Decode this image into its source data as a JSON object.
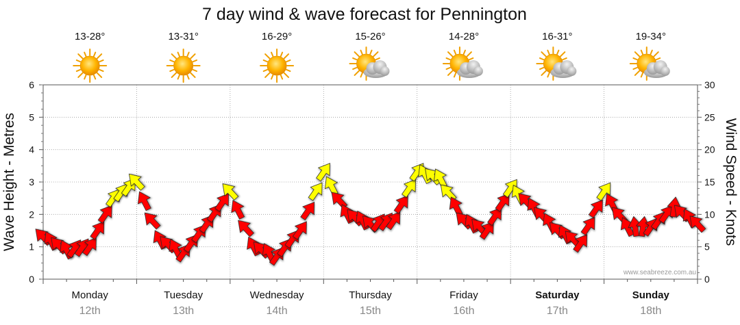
{
  "chart_data": {
    "type": "line",
    "title": "7 day wind & wave forecast for Pennington",
    "ylabel_left": "Wave Height - Metres",
    "ylabel_right": "Wind Speed - Knots",
    "ylim_left": [
      0,
      6
    ],
    "ylim_right": [
      0,
      30
    ],
    "left_ticks": [
      "0",
      "1",
      "2",
      "3",
      "4",
      "5",
      "6"
    ],
    "right_ticks": [
      "0",
      "5",
      "10",
      "15",
      "20",
      "25",
      "30"
    ],
    "days": [
      {
        "name": "Monday",
        "date": "12th",
        "temp": "13-28°",
        "weather": "sunny",
        "bold": false
      },
      {
        "name": "Tuesday",
        "date": "13th",
        "temp": "13-31°",
        "weather": "sunny",
        "bold": false
      },
      {
        "name": "Wednesday",
        "date": "14th",
        "temp": "16-29°",
        "weather": "sunny",
        "bold": false
      },
      {
        "name": "Thursday",
        "date": "15th",
        "temp": "15-26°",
        "weather": "partly-cloudy",
        "bold": false
      },
      {
        "name": "Friday",
        "date": "16th",
        "temp": "14-28°",
        "weather": "partly-cloudy",
        "bold": false
      },
      {
        "name": "Saturday",
        "date": "17th",
        "temp": "16-31°",
        "weather": "partly-cloudy",
        "bold": true
      },
      {
        "name": "Sunday",
        "date": "18th",
        "temp": "19-34°",
        "weather": "partly-cloudy",
        "bold": true
      }
    ],
    "series": [
      {
        "name": "Wind Speed (knots)",
        "x_hours": [
          0,
          6,
          12,
          18,
          24,
          30,
          36,
          42,
          48,
          54,
          60,
          66,
          72,
          78,
          84,
          90,
          96,
          102,
          108,
          114,
          120,
          126,
          132,
          138,
          144,
          150,
          156,
          162,
          168
        ],
        "values": [
          6.5,
          4.5,
          5,
          12.5,
          15,
          6,
          4,
          8.5,
          13.5,
          5,
          3.5,
          7.5,
          16.5,
          10,
          8.5,
          9,
          16.5,
          15.5,
          9,
          7.5,
          14,
          11,
          7.5,
          5.5,
          13.5,
          8,
          8,
          11,
          8.5
        ],
        "threshold_yellow": 12.5
      }
    ],
    "wind_color_low": "#ff0000",
    "wind_color_high": "#ffff00",
    "credit": "www.seabreeze.com.au"
  }
}
